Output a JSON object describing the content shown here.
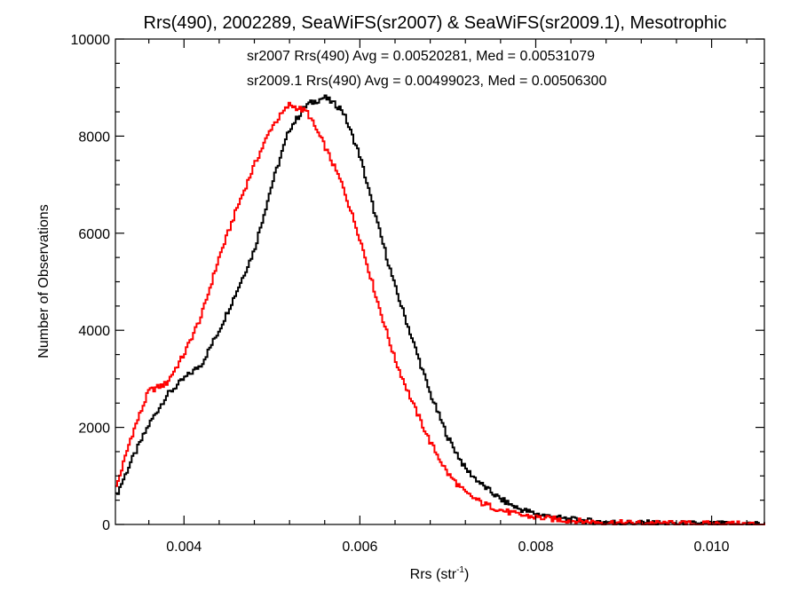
{
  "chart_data": {
    "type": "line",
    "title": "Rrs(490), 2002289, SeaWiFS(sr2007) & SeaWiFS(sr2009.1), Mesotrophic",
    "xlabel_main": "Rrs (str",
    "xlabel_sup": "-1",
    "xlabel_close": ")",
    "ylabel": "Number of Observations",
    "xlim": [
      0.00322,
      0.0106
    ],
    "ylim": [
      0,
      10000
    ],
    "x_ticks": [
      0.004,
      0.006,
      0.008,
      0.01
    ],
    "x_tick_labels": [
      "0.004",
      "0.006",
      "0.008",
      "0.010"
    ],
    "y_ticks": [
      0,
      2000,
      4000,
      6000,
      8000,
      10000
    ],
    "y_tick_labels": [
      "0",
      "2000",
      "4000",
      "6000",
      "8000",
      "10000"
    ],
    "grid": false,
    "annotations": [
      {
        "text": "sr2007 Rrs(490) Avg = 0.00520281, Med = 0.00531079",
        "color": "#000000"
      },
      {
        "text": "sr2009.1 Rrs(490) Avg = 0.00499023, Med = 0.00506300",
        "color": "#ff0000"
      }
    ],
    "series": [
      {
        "color": "#000000",
        "x": [
          0.00322,
          0.0034,
          0.0036,
          0.0038,
          0.004,
          0.0042,
          0.0044,
          0.0046,
          0.0048,
          0.005,
          0.0052,
          0.0054,
          0.0056,
          0.0058,
          0.006,
          0.0062,
          0.0064,
          0.0066,
          0.0068,
          0.007,
          0.0072,
          0.0074,
          0.0076,
          0.0078,
          0.008,
          0.0082,
          0.0084,
          0.0086,
          0.0088,
          0.009,
          0.0095,
          0.01,
          0.0106
        ],
        "values": [
          550,
          1300,
          2050,
          2650,
          3000,
          3300,
          4000,
          4800,
          5650,
          7000,
          8150,
          8650,
          8800,
          8550,
          7600,
          6200,
          4900,
          3800,
          2700,
          1800,
          1150,
          800,
          520,
          330,
          220,
          150,
          100,
          70,
          50,
          35,
          20,
          10,
          5
        ]
      },
      {
        "color": "#ff0000",
        "x": [
          0.00322,
          0.0034,
          0.0036,
          0.0038,
          0.004,
          0.0042,
          0.0044,
          0.0046,
          0.0048,
          0.005,
          0.0052,
          0.0054,
          0.0056,
          0.0058,
          0.006,
          0.0062,
          0.0064,
          0.0066,
          0.0068,
          0.007,
          0.0072,
          0.0074,
          0.0076,
          0.0078,
          0.008,
          0.0082,
          0.0084,
          0.0086,
          0.0088,
          0.009,
          0.0095,
          0.01,
          0.0106
        ],
        "values": [
          700,
          1800,
          2750,
          2900,
          3500,
          4300,
          5500,
          6500,
          7400,
          8200,
          8650,
          8500,
          7800,
          7000,
          5900,
          4600,
          3400,
          2500,
          1700,
          1050,
          650,
          430,
          300,
          200,
          150,
          110,
          80,
          55,
          40,
          30,
          20,
          10,
          5
        ]
      }
    ]
  }
}
